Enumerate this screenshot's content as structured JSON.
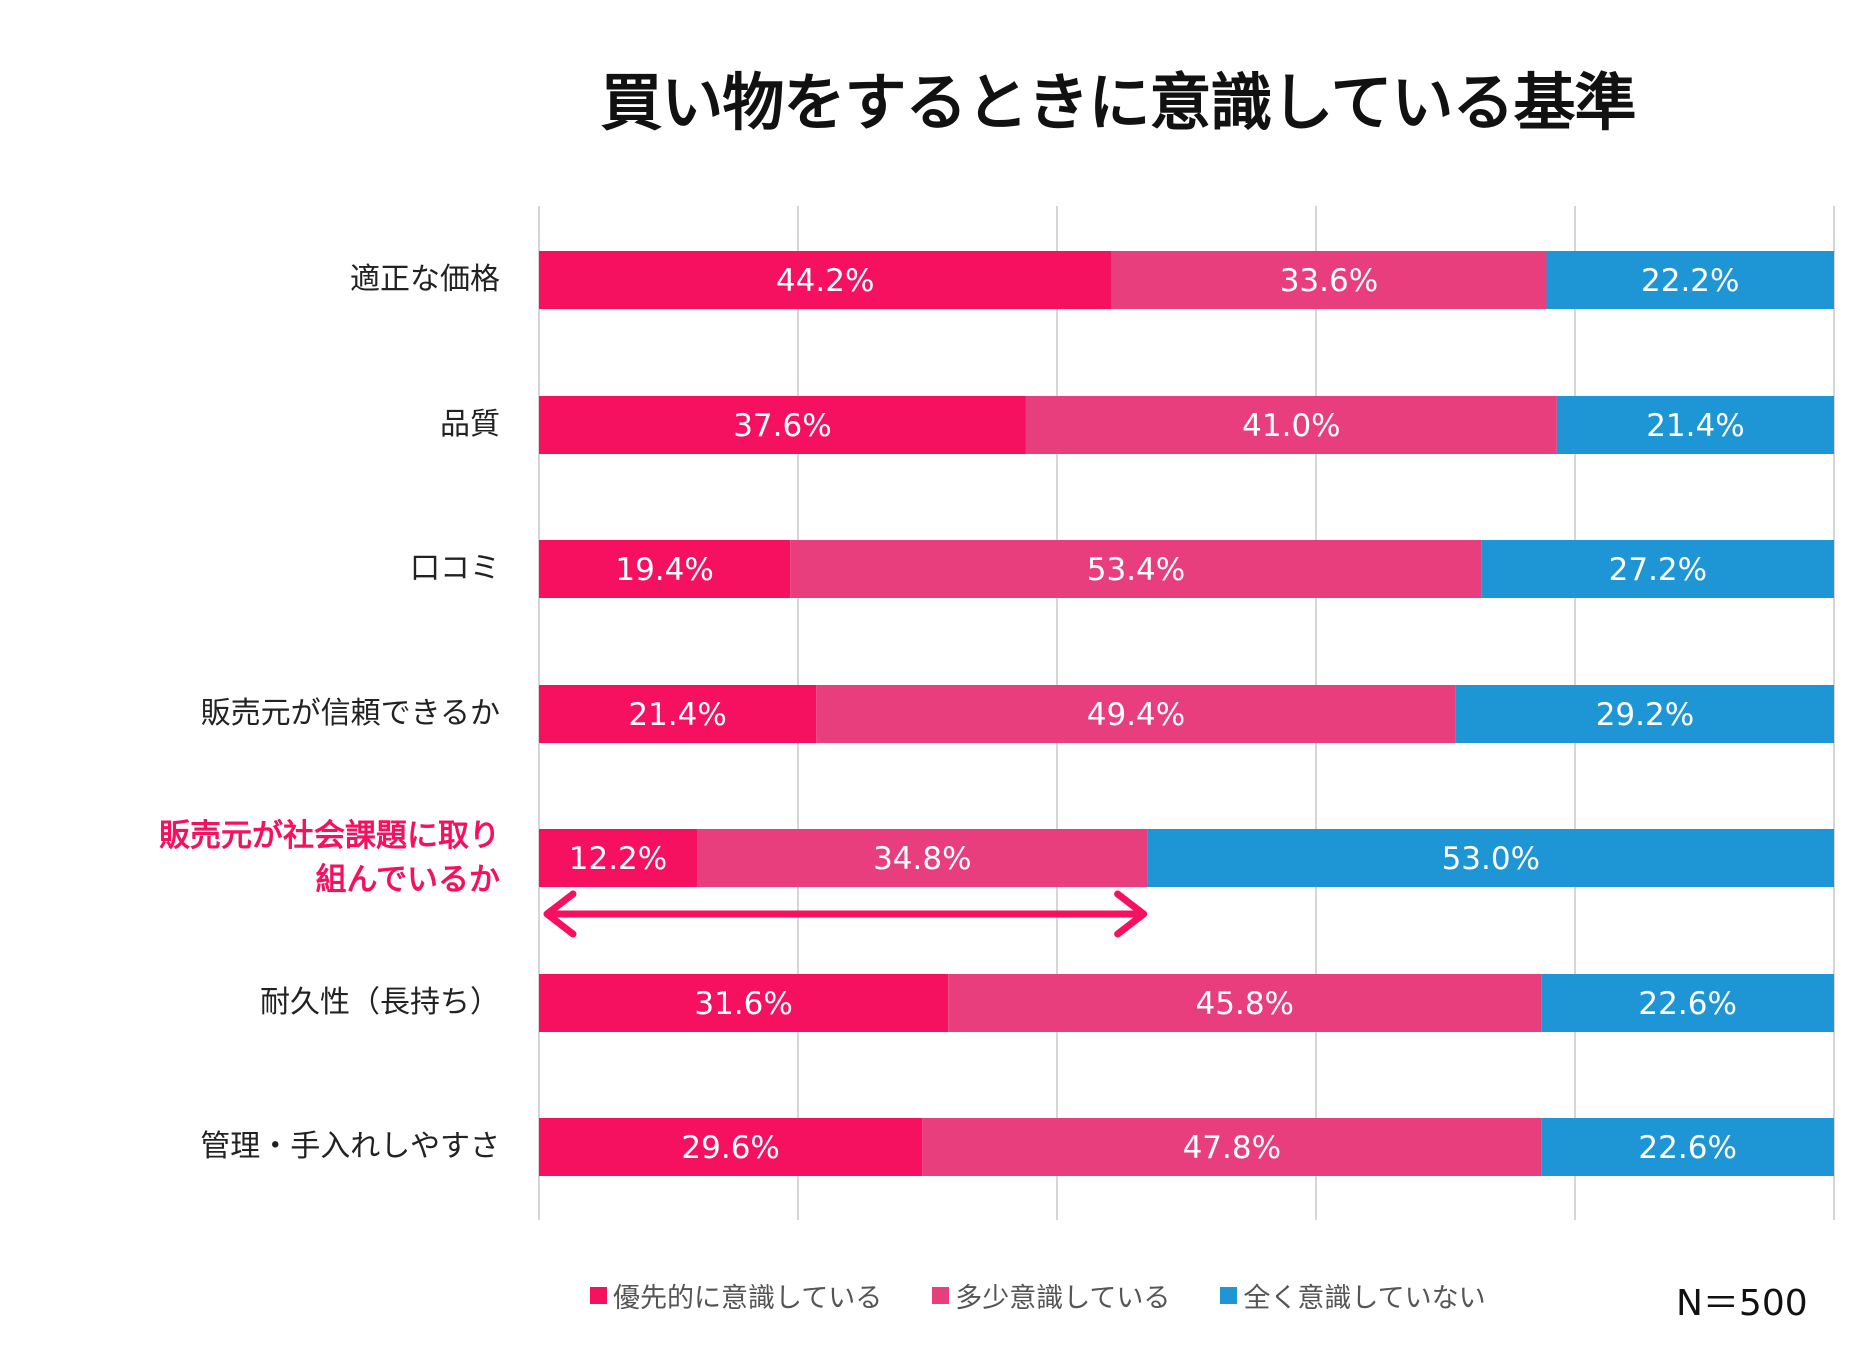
{
  "chart_data": {
    "type": "bar",
    "orientation": "horizontal",
    "stacked": "100%",
    "title": "買い物をするときに意識している基準",
    "categories": [
      "適正な価格",
      "品質",
      "口コミ",
      "販売元が信頼できるか",
      "販売元が社会課題に取り組んでいるか",
      "耐久性（長持ち）",
      "管理・手入れしやすさ"
    ],
    "highlighted_category": "販売元が社会課題に取り組んでいるか",
    "series": [
      {
        "name": "優先的に意識している",
        "color": "#F5115F",
        "values": [
          44.2,
          37.6,
          19.4,
          21.4,
          12.2,
          31.6,
          29.6
        ]
      },
      {
        "name": "多少意識している",
        "color": "#E83E7D",
        "values": [
          33.6,
          41.0,
          53.4,
          49.4,
          34.8,
          45.8,
          47.8
        ]
      },
      {
        "name": "全く意識していない",
        "color": "#1E96D5",
        "values": [
          22.2,
          21.4,
          27.2,
          29.2,
          53.0,
          22.6,
          22.6
        ]
      }
    ],
    "xlim": [
      0,
      100
    ],
    "grid": true,
    "legend_position": "bottom",
    "annotation": "double-headed arrow spanning 優先的 + 多少 segments of highlighted row",
    "note": "N＝500"
  }
}
